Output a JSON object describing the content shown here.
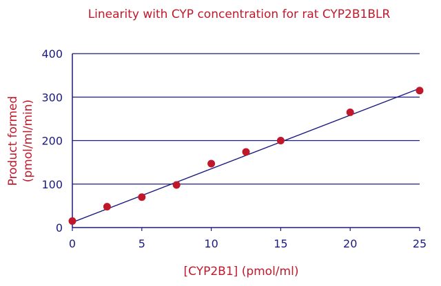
{
  "chart_data": {
    "type": "scatter",
    "title": "Linearity with CYP concentration for rat CYP2B1BLR",
    "xlabel": "[CYP2B1]  (pmol/ml)",
    "ylabel_line1": "Product formed",
    "ylabel_line2": "(pmol/ml/min)",
    "xlim": [
      0,
      25
    ],
    "ylim": [
      0,
      400
    ],
    "xticks": [
      "0",
      "5",
      "10",
      "15",
      "20",
      "25"
    ],
    "yticks": [
      "0",
      "100",
      "200",
      "300",
      "400"
    ],
    "grid": "horizontal",
    "colors": {
      "text": "#c0182a",
      "axis": "#1a1a80",
      "points": "#c0182a",
      "line": "#1a1a80"
    },
    "series": [
      {
        "points": [
          {
            "x": 0,
            "y": 15
          },
          {
            "x": 2.5,
            "y": 48
          },
          {
            "x": 5,
            "y": 70
          },
          {
            "x": 7.5,
            "y": 98
          },
          {
            "x": 10,
            "y": 147
          },
          {
            "x": 12.5,
            "y": 174
          },
          {
            "x": 15,
            "y": 200
          },
          {
            "x": 20,
            "y": 265
          },
          {
            "x": 25,
            "y": 315
          }
        ]
      }
    ],
    "trendline": {
      "x": [
        0,
        25
      ],
      "y": [
        12,
        320
      ]
    }
  }
}
